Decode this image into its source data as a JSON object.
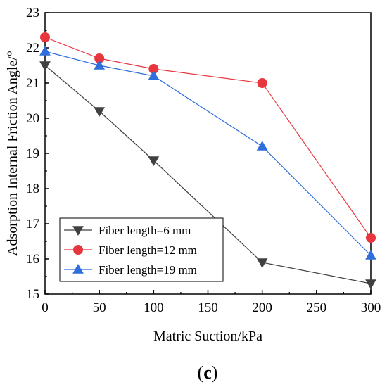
{
  "chart_data": {
    "type": "line",
    "xlabel": "Matric Suction/kPa",
    "ylabel": "Adsorption Internal Friction Angle/°",
    "xlim": [
      0,
      300
    ],
    "ylim": [
      15,
      23
    ],
    "xticks": [
      0,
      50,
      100,
      150,
      200,
      250,
      300
    ],
    "yticks": [
      15,
      16,
      17,
      18,
      19,
      20,
      21,
      22,
      23
    ],
    "grid": false,
    "legend_position": "bottom-left",
    "series": [
      {
        "name": "Fiber length=6 mm",
        "marker": "triangle-down",
        "color": "#404040",
        "x": [
          0,
          50,
          100,
          200,
          300
        ],
        "y": [
          21.5,
          20.2,
          18.8,
          15.9,
          15.3
        ]
      },
      {
        "name": "Fiber length=12 mm",
        "marker": "circle",
        "color": "#e8363f",
        "x": [
          0,
          50,
          100,
          200,
          300
        ],
        "y": [
          22.3,
          21.7,
          21.4,
          21.0,
          16.6
        ]
      },
      {
        "name": "Fiber length=19 mm",
        "marker": "triangle-up",
        "color": "#2f6fdc",
        "x": [
          0,
          50,
          100,
          200,
          300
        ],
        "y": [
          21.9,
          21.5,
          21.2,
          19.2,
          16.1
        ]
      }
    ]
  },
  "panel_label": {
    "open": "(",
    "letter": "c",
    "close": ")"
  }
}
